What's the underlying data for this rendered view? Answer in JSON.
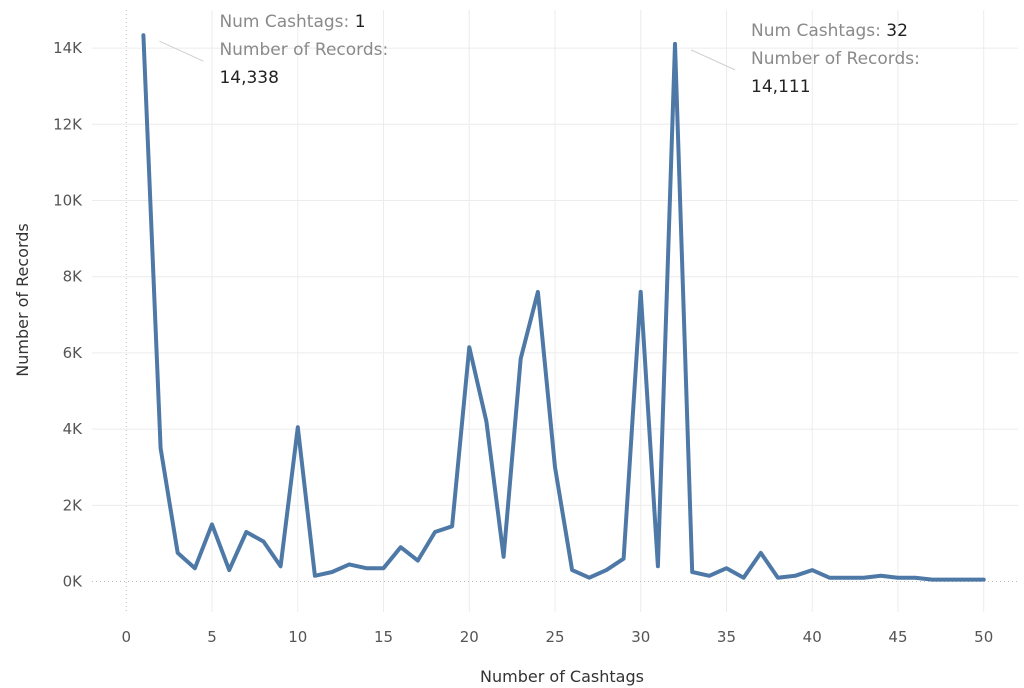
{
  "chart_data": {
    "type": "line",
    "xlabel": "Number of Cashtags",
    "ylabel": "Number of Records",
    "xlim": [
      -2,
      52
    ],
    "ylim": [
      -800,
      15000
    ],
    "x_ticks": [
      0,
      5,
      10,
      15,
      20,
      25,
      30,
      35,
      40,
      45,
      50
    ],
    "y_ticks": [
      0,
      2000,
      4000,
      6000,
      8000,
      10000,
      12000,
      14000
    ],
    "y_tick_labels": [
      "0K",
      "2K",
      "4K",
      "6K",
      "8K",
      "10K",
      "12K",
      "14K"
    ],
    "grid": true,
    "line_color": "#4e79a7",
    "series": [
      {
        "x": [
          1,
          2,
          3,
          4,
          5,
          6,
          7,
          8,
          9,
          10,
          11,
          12,
          13,
          14,
          15,
          16,
          17,
          18,
          19,
          20,
          21,
          22,
          23,
          24,
          25,
          26,
          27,
          28,
          29,
          30,
          31,
          32,
          33,
          34,
          35,
          36,
          37,
          38,
          39,
          40,
          41,
          42,
          43,
          44,
          45,
          46,
          47,
          48,
          49,
          50
        ],
        "values": [
          14338,
          3500,
          750,
          350,
          1500,
          300,
          1300,
          1050,
          400,
          4050,
          150,
          250,
          450,
          350,
          350,
          900,
          550,
          1300,
          1450,
          6150,
          4200,
          650,
          5850,
          7600,
          3000,
          300,
          100,
          300,
          600,
          7600,
          400,
          14111,
          250,
          150,
          350,
          100,
          750,
          100,
          150,
          300,
          100,
          100,
          100,
          150,
          100,
          100,
          50,
          50,
          50,
          50
        ]
      }
    ],
    "annotations": [
      {
        "x": 1,
        "y": 14338,
        "key1": "Num Cashtags:",
        "val1": "1",
        "key2": "Number of Records:",
        "val2": "14,338"
      },
      {
        "x": 32,
        "y": 14111,
        "key1": "Num Cashtags:",
        "val1": "32",
        "key2": "Number of Records:",
        "val2": "14,111"
      }
    ]
  }
}
